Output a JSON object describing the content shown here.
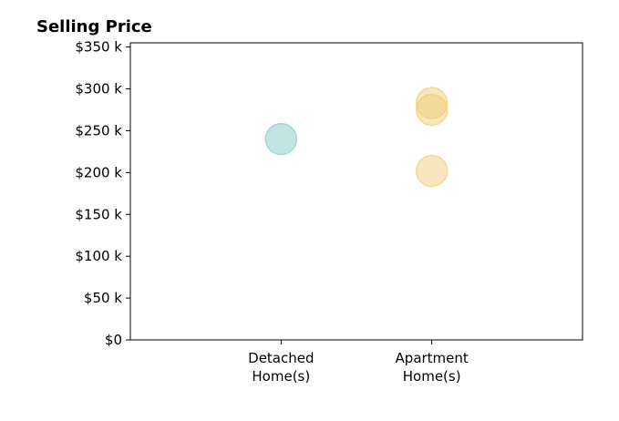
{
  "chart_data": {
    "type": "scatter",
    "title": "Selling Price",
    "xlabel": "",
    "ylabel": "",
    "categories": [
      [
        "Detached",
        "Home(s)"
      ],
      [
        "Apartment",
        "Home(s)"
      ]
    ],
    "x_range": [
      -1,
      2
    ],
    "ylim": [
      0,
      355000
    ],
    "y_ticks": [
      0,
      50000,
      100000,
      150000,
      200000,
      250000,
      300000,
      350000
    ],
    "y_tick_labels": [
      "$0",
      "$50 k",
      "$100 k",
      "$150 k",
      "$200 k",
      "$250 k",
      "$300 k",
      "$350 k"
    ],
    "grid": false,
    "series": [
      {
        "color": "#8ecfca",
        "alpha": 0.55,
        "points": [
          {
            "x": 0,
            "y": 240000
          }
        ]
      },
      {
        "color": "#f0c96f",
        "alpha": 0.45,
        "points": [
          {
            "x": 1,
            "y": 283000
          },
          {
            "x": 1,
            "y": 275000
          },
          {
            "x": 1,
            "y": 202000
          }
        ]
      }
    ]
  }
}
